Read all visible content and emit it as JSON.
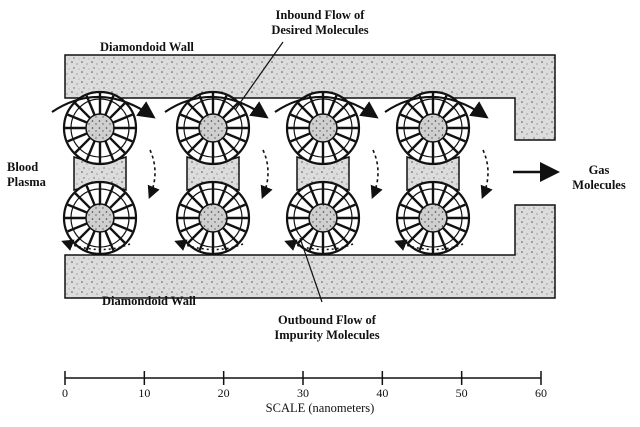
{
  "labels": {
    "top_wall": "Diamondoid Wall",
    "bottom_wall": "Diamondoid Wall",
    "blood_line1": "Blood",
    "blood_line2": "Plasma",
    "gas_line1": "Gas",
    "gas_line2": "Molecules",
    "inbound_line1": "Inbound Flow of",
    "inbound_line2": "Desired Molecules",
    "outbound_line1": "Outbound Flow of",
    "outbound_line2": "Impurity Molecules"
  },
  "scale": {
    "title": "SCALE  (nanometers)",
    "ticks": [
      "0",
      "10",
      "20",
      "30",
      "40",
      "50",
      "60"
    ]
  },
  "colors": {
    "ink": "#111111",
    "wall_fill": "#dcdcdc",
    "rotor_hub": "#c9c9c9"
  }
}
